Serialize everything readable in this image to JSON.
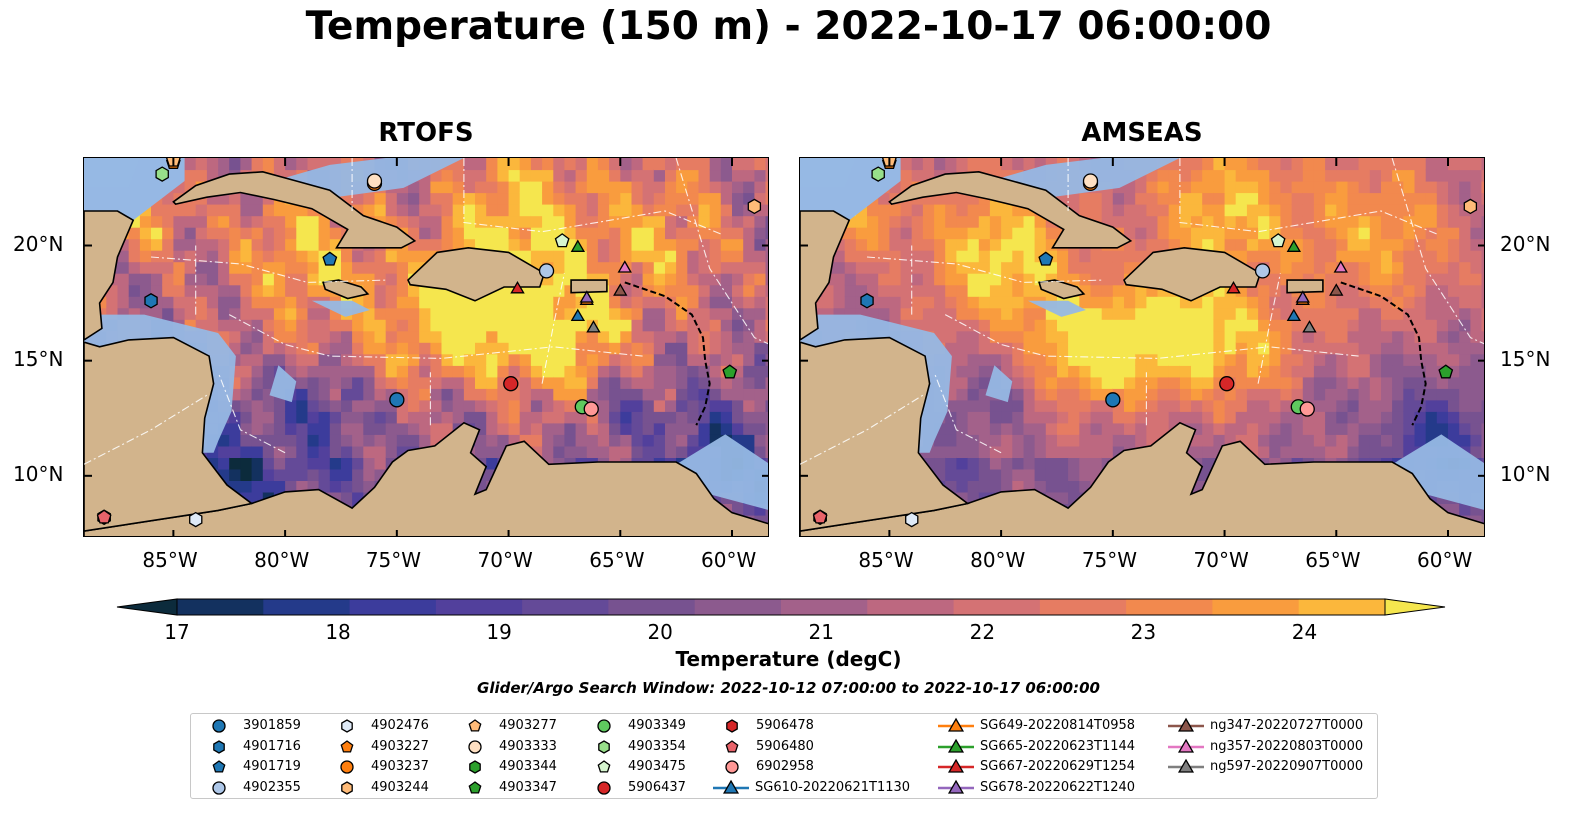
{
  "title": "Temperature (150 m) - 2022-10-17 06:00:00",
  "panels": [
    {
      "title": "RTOFS",
      "variant": "rtofs"
    },
    {
      "title": "AMSEAS",
      "variant": "amseas"
    }
  ],
  "axes": {
    "lon_ticks": [
      "85°W",
      "80°W",
      "75°W",
      "70°W",
      "65°W",
      "60°W"
    ],
    "lat_ticks": [
      "20°N",
      "15°N",
      "10°N"
    ],
    "extent": {
      "lon": [
        -89,
        -58.3
      ],
      "lat": [
        7.3,
        23.8
      ]
    }
  },
  "colorbar": {
    "label": "Temperature (degC)",
    "ticks": [
      "17",
      "18",
      "19",
      "20",
      "21",
      "22",
      "23",
      "24"
    ],
    "vmin": 17,
    "vmax": 24.5,
    "step": 0.5,
    "colors": [
      "#0c2b3c",
      "#13315f",
      "#243a8a",
      "#3c3c9c",
      "#52409c",
      "#644a98",
      "#775290",
      "#8c5a8e",
      "#a3618a",
      "#bd6880",
      "#d47274",
      "#e67c62",
      "#f2894e",
      "#f99c3e",
      "#fbb73c",
      "#f5e64e"
    ]
  },
  "search_window": "Glider/Argo Search Window: 2022-10-12 07:00:00 to 2022-10-17 06:00:00",
  "legend": [
    {
      "label": "3901859",
      "shape": "circle",
      "color": "#1f77b4"
    },
    {
      "label": "4901716",
      "shape": "hexagon",
      "color": "#1f77b4"
    },
    {
      "label": "4901719",
      "shape": "pentagon",
      "color": "#1f77b4"
    },
    {
      "label": "4902355",
      "shape": "circle",
      "color": "#aec7e8"
    },
    {
      "label": "4902476",
      "shape": "hexagon",
      "color": "#dfeaf7"
    },
    {
      "label": "4903227",
      "shape": "pentagon",
      "color": "#ff7f0e"
    },
    {
      "label": "4903237",
      "shape": "circle",
      "color": "#ff7f0e"
    },
    {
      "label": "4903244",
      "shape": "hexagon",
      "color": "#ffbb78"
    },
    {
      "label": "4903277",
      "shape": "pentagon",
      "color": "#ffbb78"
    },
    {
      "label": "4903333",
      "shape": "circle",
      "color": "#ffe0c2"
    },
    {
      "label": "4903344",
      "shape": "hexagon",
      "color": "#2ca02c"
    },
    {
      "label": "4903347",
      "shape": "pentagon",
      "color": "#2ca02c"
    },
    {
      "label": "4903349",
      "shape": "circle",
      "color": "#5fc95f"
    },
    {
      "label": "4903354",
      "shape": "hexagon",
      "color": "#98df8a"
    },
    {
      "label": "4903475",
      "shape": "pentagon",
      "color": "#d6f5cf"
    },
    {
      "label": "5906437",
      "shape": "circle",
      "color": "#d62728"
    },
    {
      "label": "5906478",
      "shape": "hexagon",
      "color": "#d62728"
    },
    {
      "label": "5906480",
      "shape": "pentagon",
      "color": "#e8636a"
    },
    {
      "label": "6902958",
      "shape": "circle",
      "color": "#ff9896"
    },
    {
      "label": "SG610-20220621T1130",
      "shape": "triangle-line",
      "color": "#1f77b4"
    },
    {
      "label": "SG649-20220814T0958",
      "shape": "triangle-line",
      "color": "#ff7f0e"
    },
    {
      "label": "SG665-20220623T1144",
      "shape": "triangle-line",
      "color": "#2ca02c"
    },
    {
      "label": "SG667-20220629T1254",
      "shape": "triangle-line",
      "color": "#d62728"
    },
    {
      "label": "SG678-20220622T1240",
      "shape": "triangle-line",
      "color": "#9467bd"
    },
    {
      "label": "ng347-20220727T0000",
      "shape": "triangle-line",
      "color": "#8c564b"
    },
    {
      "label": "ng357-20220803T0000",
      "shape": "triangle-line",
      "color": "#e377c2"
    },
    {
      "label": "ng597-20220907T0000",
      "shape": "triangle-line",
      "color": "#7f7f7f"
    }
  ],
  "platforms": [
    {
      "id": "3901859",
      "lon": -75.0,
      "lat": 13.3
    },
    {
      "id": "4901716",
      "lon": -86.0,
      "lat": 17.6
    },
    {
      "id": "4901719",
      "lon": -78.0,
      "lat": 19.4
    },
    {
      "id": "4902355",
      "lon": -68.3,
      "lat": 18.9
    },
    {
      "id": "4902476",
      "lon": -84.0,
      "lat": 8.1
    },
    {
      "id": "4903227",
      "lon": -85.0,
      "lat": 23.6
    },
    {
      "id": "4903237",
      "lon": -76.0,
      "lat": 22.7
    },
    {
      "id": "4903244",
      "lon": -59.0,
      "lat": 21.7
    },
    {
      "id": "4903277",
      "lon": -85.0,
      "lat": 23.7
    },
    {
      "id": "4903333",
      "lon": -76.0,
      "lat": 22.8
    },
    {
      "id": "4903344",
      "lon": -88.1,
      "lat": 8.2
    },
    {
      "id": "4903347",
      "lon": -60.1,
      "lat": 14.5
    },
    {
      "id": "4903349",
      "lon": -66.7,
      "lat": 13.0
    },
    {
      "id": "4903354",
      "lon": -85.5,
      "lat": 23.1
    },
    {
      "id": "4903475",
      "lon": -67.6,
      "lat": 20.2
    },
    {
      "id": "5906437",
      "lon": -69.9,
      "lat": 14.0
    },
    {
      "id": "5906478",
      "lon": -88.1,
      "lat": 8.2
    },
    {
      "id": "5906480",
      "lon": -88.1,
      "lat": 8.2
    },
    {
      "id": "6902958",
      "lon": -66.3,
      "lat": 12.9
    },
    {
      "id": "SG610-20220621T1130",
      "lon": -66.9,
      "lat": 16.9
    },
    {
      "id": "SG649-20220814T0958",
      "lon": -66.5,
      "lat": 17.6
    },
    {
      "id": "SG665-20220623T1144",
      "lon": -66.9,
      "lat": 19.9
    },
    {
      "id": "SG667-20220629T1254",
      "lon": -69.6,
      "lat": 18.1
    },
    {
      "id": "SG678-20220622T1240",
      "lon": -66.5,
      "lat": 17.7
    },
    {
      "id": "ng347-20220727T0000",
      "lon": -65.0,
      "lat": 18.0
    },
    {
      "id": "ng357-20220803T0000",
      "lon": -64.8,
      "lat": 19.0
    },
    {
      "id": "ng597-20220907T0000",
      "lon": -66.2,
      "lat": 16.4
    }
  ],
  "colors": {
    "land": "#d2b48c",
    "shelf": "#96b8e4",
    "coast": "#000000"
  }
}
